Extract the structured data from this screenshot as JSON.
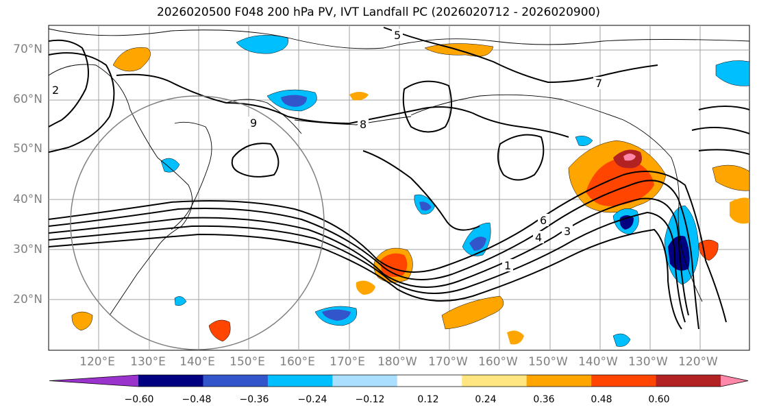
{
  "title": "2026020500 F048 200 hPa PV, IVT Landfall PC (2026020712 - 2026020900)",
  "lat_labels": [
    "70°N",
    "60°N",
    "50°N",
    "40°N",
    "30°N",
    "20°N"
  ],
  "lon_labels": [
    "120°E",
    "130°E",
    "140°E",
    "150°E",
    "160°E",
    "170°E",
    "180°W",
    "170°W",
    "160°W",
    "150°W",
    "140°W",
    "130°W",
    "120°W"
  ],
  "colorbar": {
    "tick_labels": [
      "−0.60",
      "−0.48",
      "−0.36",
      "−0.24",
      "−0.12",
      "0.12",
      "0.24",
      "0.36",
      "0.48",
      "0.60"
    ],
    "colors": [
      "#9933cc",
      "#000080",
      "#3355cc",
      "#00bfff",
      "#aadfff",
      "#ffffff",
      "#ffe680",
      "#ffa500",
      "#ff4500",
      "#b22222",
      "#ff88aa"
    ]
  },
  "contour_labels": [
    "1",
    "3",
    "4",
    "6",
    "7",
    "8",
    "9",
    "5",
    "2"
  ],
  "chart_data": {
    "type": "map",
    "title": "2026020500 F048 200 hPa PV, IVT Landfall PC (2026020712 - 2026020900)",
    "fields": [
      "200 hPa PV (contours)",
      "IVT Landfall PC (shaded)"
    ],
    "color_levels": [
      -0.6,
      -0.48,
      -0.36,
      -0.24,
      -0.12,
      0.12,
      0.24,
      0.36,
      0.48,
      0.6
    ],
    "lat_range": [
      "10°N",
      "75°N"
    ],
    "lon_range": [
      "110°E",
      "115°W"
    ],
    "grid": true
  }
}
